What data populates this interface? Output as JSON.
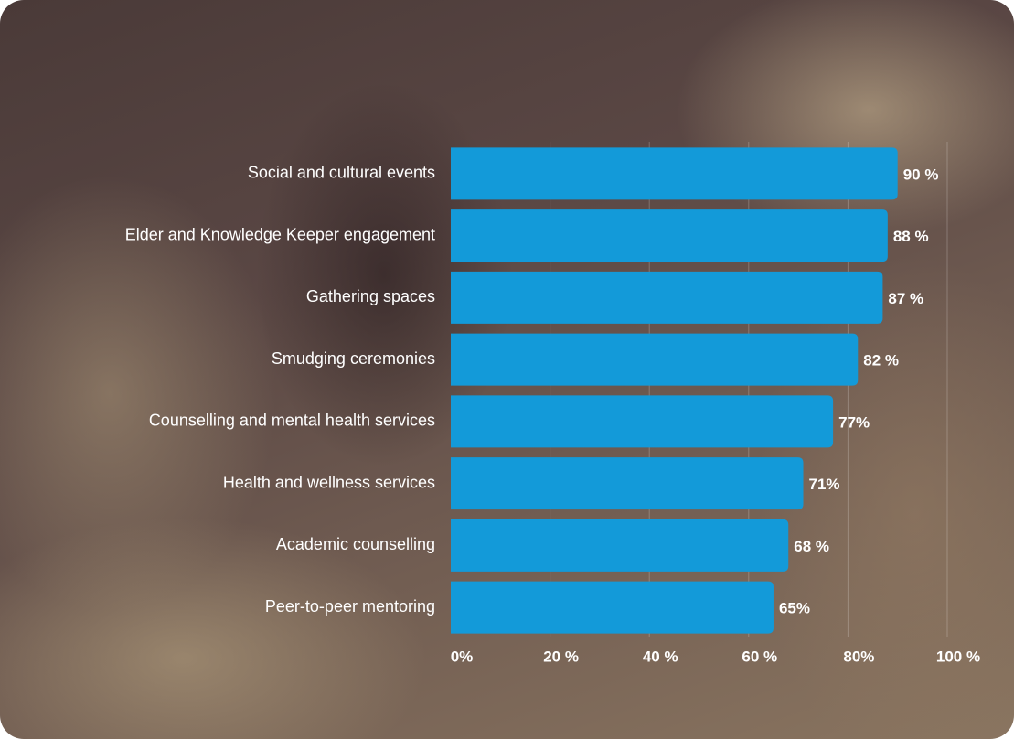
{
  "chart_data": {
    "type": "barh",
    "categories": [
      "Social and cultural events",
      "Elder and Knowledge Keeper engagement",
      "Gathering spaces",
      "Smudging ceremonies",
      "Counselling and mental health services",
      "Health and wellness services",
      "Academic counselling",
      "Peer-to-peer mentoring"
    ],
    "values": [
      90,
      88,
      87,
      82,
      77,
      71,
      68,
      65
    ],
    "value_labels": [
      "90 %",
      "88 %",
      "87 %",
      "82 %",
      "77%",
      "71%",
      "68 %",
      "65%"
    ],
    "color": "#139ad9",
    "xlim": [
      0,
      100
    ],
    "xticks": [
      {
        "value": 0,
        "label": "0%"
      },
      {
        "value": 20,
        "label": "20 %"
      },
      {
        "value": 40,
        "label": "40 %"
      },
      {
        "value": 60,
        "label": "60 %"
      },
      {
        "value": 80,
        "label": "80%"
      },
      {
        "value": 100,
        "label": "100 %"
      }
    ],
    "grid": true
  }
}
